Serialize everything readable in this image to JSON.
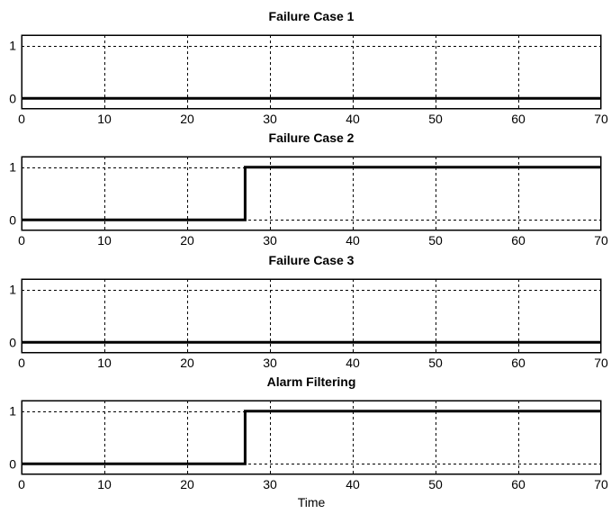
{
  "chart_data": [
    {
      "type": "line",
      "title": "Failure Case 1",
      "xlabel": "",
      "x": [
        0,
        70
      ],
      "y": [
        0,
        0
      ],
      "xlim": [
        0,
        70
      ],
      "ylim": [
        -0.2,
        1.2
      ],
      "xticks": [
        0,
        10,
        20,
        30,
        40,
        50,
        60,
        70
      ],
      "yticks": [
        0,
        1
      ],
      "grid": true
    },
    {
      "type": "line",
      "title": "Failure Case 2",
      "xlabel": "",
      "x": [
        0,
        27,
        27,
        70
      ],
      "y": [
        0,
        0,
        1,
        1
      ],
      "xlim": [
        0,
        70
      ],
      "ylim": [
        -0.2,
        1.2
      ],
      "xticks": [
        0,
        10,
        20,
        30,
        40,
        50,
        60,
        70
      ],
      "yticks": [
        0,
        1
      ],
      "grid": true
    },
    {
      "type": "line",
      "title": "Failure Case 3",
      "xlabel": "",
      "x": [
        0,
        70
      ],
      "y": [
        0,
        0
      ],
      "xlim": [
        0,
        70
      ],
      "ylim": [
        -0.2,
        1.2
      ],
      "xticks": [
        0,
        10,
        20,
        30,
        40,
        50,
        60,
        70
      ],
      "yticks": [
        0,
        1
      ],
      "grid": true
    },
    {
      "type": "line",
      "title": "Alarm Filtering",
      "xlabel": "Time",
      "x": [
        0,
        27,
        27,
        70
      ],
      "y": [
        0,
        0,
        1,
        1
      ],
      "xlim": [
        0,
        70
      ],
      "ylim": [
        -0.2,
        1.2
      ],
      "xticks": [
        0,
        10,
        20,
        30,
        40,
        50,
        60,
        70
      ],
      "yticks": [
        0,
        1
      ],
      "grid": true
    }
  ]
}
